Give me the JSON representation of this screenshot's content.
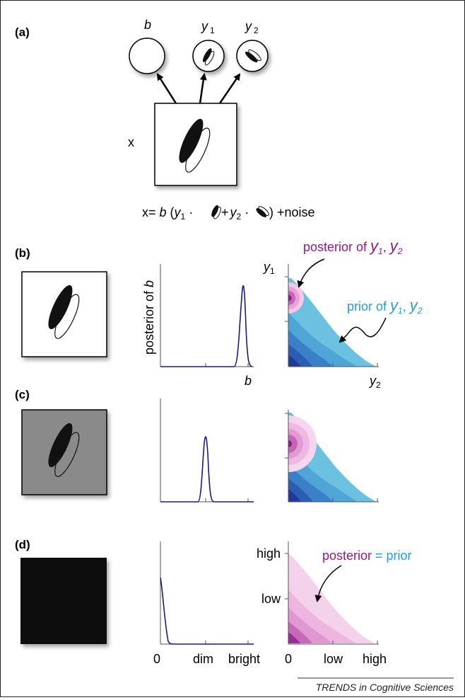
{
  "panels": {
    "a": {
      "label": "(a)",
      "nodes": {
        "b": "b",
        "y1": "y",
        "y1_sub": "1",
        "y2": "y",
        "y2_sub": "2"
      },
      "x_label": "x",
      "equation": {
        "lhs": "x= ",
        "b": "b",
        "open": " (",
        "y1": "y",
        "y1_sub": "1",
        "dot1": " ·",
        "plus": " +",
        "y2": "y",
        "y2_sub": "2",
        "dot2": " ·",
        "close": ") +noise"
      }
    },
    "b": {
      "label": "(b)",
      "posterior_b_axis_label": "posterior of ",
      "posterior_b_axis_var": "b",
      "posterior_b_xlabel": "b",
      "contour_ylabel": "y",
      "contour_ylabel_sub": "1",
      "contour_xlabel": "y",
      "contour_xlabel_sub": "2",
      "annotation_posterior": {
        "text": "posterior of ",
        "v1": "y",
        "v1_sub": "1",
        "comma": ", ",
        "v2": "y",
        "v2_sub": "2"
      },
      "annotation_prior": {
        "text": "prior of ",
        "v1": "y",
        "v1_sub": "1",
        "comma": ", ",
        "v2": "y",
        "v2_sub": "2"
      }
    },
    "c": {
      "label": "(c)"
    },
    "d": {
      "label": "(d)",
      "ticks_x": [
        "0",
        "dim",
        "bright"
      ],
      "contour_y_ticks": [
        "high",
        "low"
      ],
      "contour_x_ticks": [
        "0",
        "low",
        "high"
      ],
      "annotation": {
        "posterior": "posterior",
        "equals": " = ",
        "prior": "prior"
      }
    }
  },
  "footer": {
    "source": "TRENDS in Cognitive Sciences"
  },
  "colors": {
    "prior_blue": "#6cc0e0",
    "posterior_purple": "#8e1a86",
    "prior_label_blue": "#2d9ad8",
    "curve_navy": "#1a1a8a",
    "gray_square": "#8a8a8a",
    "black_square": "#111111"
  }
}
